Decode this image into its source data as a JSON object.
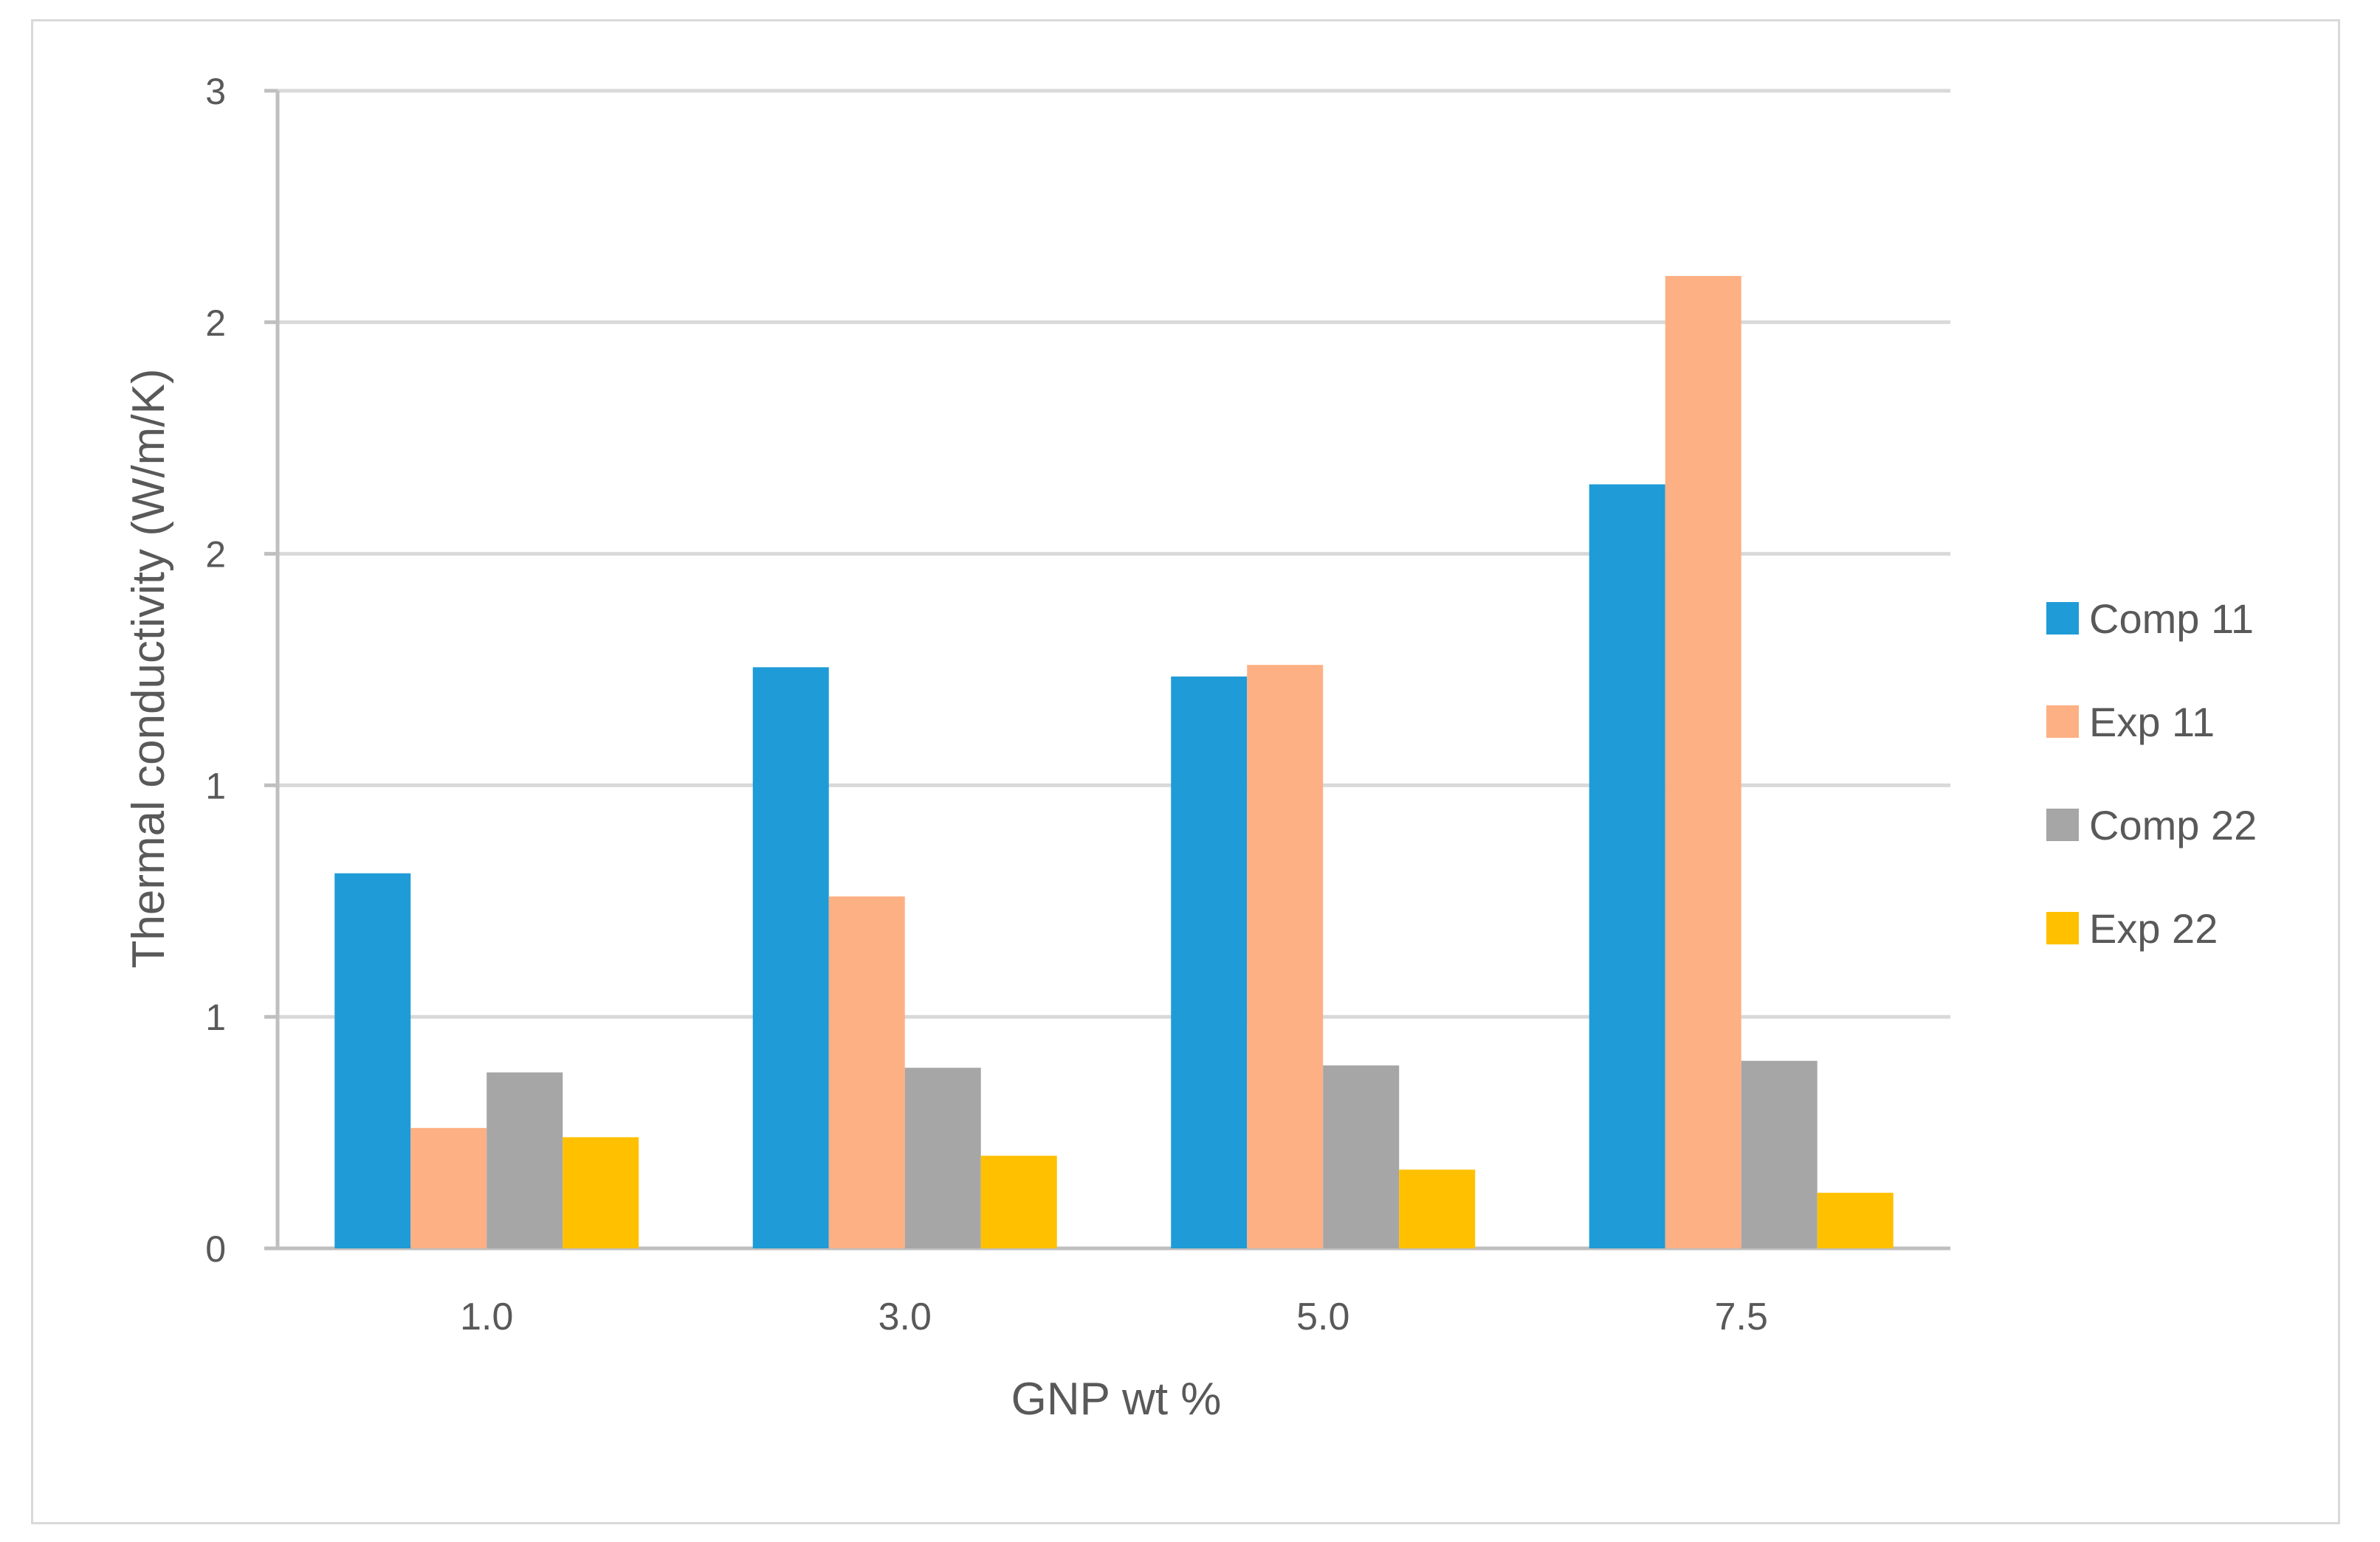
{
  "chart_data": {
    "type": "bar",
    "title": "",
    "xlabel": "GNP wt %",
    "ylabel": "Thermal conductivity (W/m/K)",
    "categories": [
      "1.0",
      "3.0",
      "5.0",
      "7.5"
    ],
    "ylim": [
      0,
      2.5
    ],
    "y_ticks": [
      0,
      0.5,
      1.0,
      1.5,
      2.0,
      2.5
    ],
    "y_tick_labels": [
      "0",
      "1",
      "1",
      "2",
      "2",
      "3"
    ],
    "grid": true,
    "legend_position": "right",
    "series": [
      {
        "name": "Comp 11",
        "color": "#1f9bd7",
        "values": [
          0.81,
          1.255,
          1.235,
          1.65
        ]
      },
      {
        "name": "Exp 11",
        "color": "#fdb083",
        "values": [
          0.26,
          0.76,
          1.26,
          2.1
        ]
      },
      {
        "name": "Comp 22",
        "color": "#a6a6a6",
        "values": [
          0.38,
          0.39,
          0.395,
          0.405
        ]
      },
      {
        "name": "Exp 22",
        "color": "#ffc000",
        "values": [
          0.24,
          0.2,
          0.17,
          0.12
        ]
      }
    ]
  }
}
